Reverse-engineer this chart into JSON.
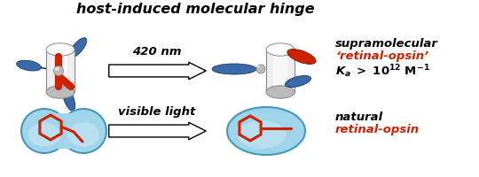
{
  "title": "host-induced molecular hinge",
  "arrow_label_top": "420 nm",
  "arrow_label_bottom": "visible light",
  "top_right_line1": "supramolecular",
  "top_right_line2": "‘retinal-opsin’",
  "top_right_line2_color": "#cc2200",
  "bottom_right_line1": "natural",
  "bottom_right_line2": "retinal-opsin",
  "bottom_right_line2_color": "#cc2200",
  "blue": "#3a6aaa",
  "blue_dark": "#1a3a66",
  "blue_mid": "#5588bb",
  "red": "#cc2200",
  "red_dark": "#881100",
  "lb1": "#7bc4de",
  "lb2": "#a0d4ea",
  "lb3": "#c8e8f4",
  "lb_edge": "#4499bb",
  "gray_light": "#e8e8e8",
  "gray_mid": "#bbbbbb",
  "gray_dark": "#888888",
  "white": "#ffffff",
  "background": "#ffffff"
}
